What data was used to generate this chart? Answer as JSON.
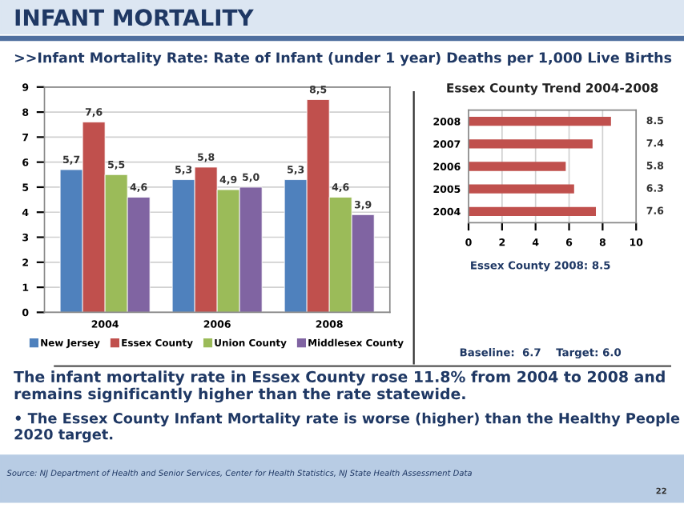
{
  "chart_data": [
    {
      "type": "bar",
      "title": "INFANT MORTALITY",
      "subtitle": ">>Infant Mortality Rate: Rate of Infant (under 1 year) Deaths per 1,000 Live Births",
      "categories": [
        "2004",
        "2006",
        "2008"
      ],
      "series": [
        {
          "name": "New Jersey",
          "color": "#4f81bd",
          "values": [
            5.7,
            5.3,
            5.3
          ],
          "value_labels": [
            "5,7",
            "5,3",
            "5,3"
          ]
        },
        {
          "name": "Essex County",
          "color": "#c0504d",
          "values": [
            7.6,
            5.8,
            8.5
          ],
          "value_labels": [
            "7,6",
            "5,8",
            "8,5"
          ]
        },
        {
          "name": "Union County",
          "color": "#9bbb59",
          "values": [
            5.5,
            4.9,
            4.6
          ],
          "value_labels": [
            "5,5",
            "4,9",
            "4,6"
          ]
        },
        {
          "name": "Middlesex County",
          "color": "#8064a2",
          "values": [
            4.6,
            5.0,
            3.9
          ],
          "value_labels": [
            "4,6",
            "5,0",
            "3,9"
          ]
        }
      ],
      "ylim": [
        0,
        9
      ],
      "yticks": [
        0,
        1,
        2,
        3,
        4,
        5,
        6,
        7,
        8,
        9
      ],
      "grid": "y",
      "legend": "bottom",
      "annotations": [
        "The infant mortality rate in Essex County rose 11.8% from 2004 to 2008 and remains significantly higher than the rate statewide.",
        "• The Essex County Infant Mortality rate is worse (higher) than the Healthy People 2020 target.",
        "Source: NJ Department of Health and Senior Services, Center for Health Statistics, NJ State Health Assessment Data",
        "22"
      ]
    },
    {
      "type": "bar",
      "orientation": "horizontal",
      "title": "Essex County Trend 2004-2008",
      "categories": [
        "2008",
        "2007",
        "2006",
        "2005",
        "2004"
      ],
      "values": [
        8.5,
        7.4,
        5.8,
        6.3,
        7.6
      ],
      "color": "#c0504d",
      "data_labels": true,
      "xlim": [
        0,
        10
      ],
      "xticks": [
        0,
        2,
        4,
        6,
        8,
        10
      ],
      "grid": "x",
      "annotations": [
        "Essex County 2008: 8.5",
        "Baseline:  6.7    Target: 6.0"
      ]
    }
  ]
}
